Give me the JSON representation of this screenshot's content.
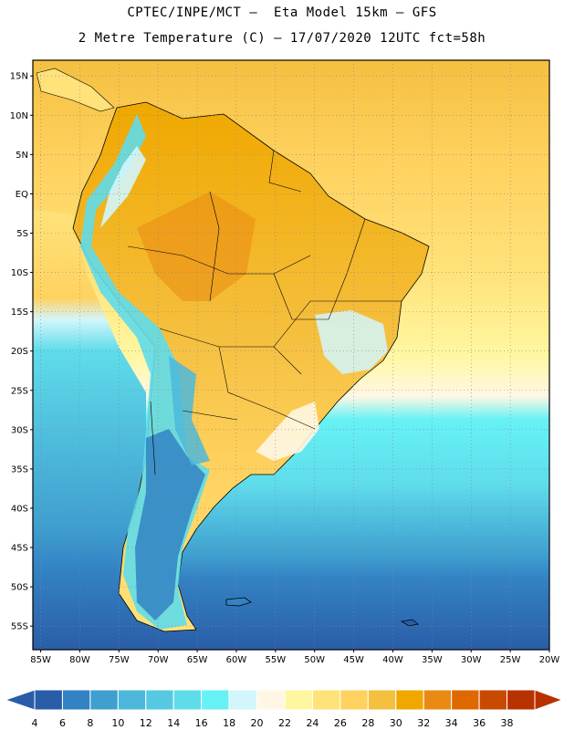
{
  "header": {
    "line1": "CPTEC/INPE/MCT –  Eta Model 15km – GFS",
    "line2": "2 Metre Temperature (C) – 17/07/2020 12UTC fct=58h"
  },
  "map": {
    "lat_range": [
      -58,
      17
    ],
    "lon_range": [
      -86,
      -20
    ],
    "lat_labels": [
      {
        "value": 15,
        "text": "15N"
      },
      {
        "value": 10,
        "text": "10N"
      },
      {
        "value": 5,
        "text": "5N"
      },
      {
        "value": 0,
        "text": "EQ"
      },
      {
        "value": -5,
        "text": "5S"
      },
      {
        "value": -10,
        "text": "10S"
      },
      {
        "value": -15,
        "text": "15S"
      },
      {
        "value": -20,
        "text": "20S"
      },
      {
        "value": -25,
        "text": "25S"
      },
      {
        "value": -30,
        "text": "30S"
      },
      {
        "value": -35,
        "text": "35S"
      },
      {
        "value": -40,
        "text": "40S"
      },
      {
        "value": -45,
        "text": "45S"
      },
      {
        "value": -50,
        "text": "50S"
      },
      {
        "value": -55,
        "text": "55S"
      }
    ],
    "lon_labels": [
      {
        "value": -85,
        "text": "85W"
      },
      {
        "value": -80,
        "text": "80W"
      },
      {
        "value": -75,
        "text": "75W"
      },
      {
        "value": -70,
        "text": "70W"
      },
      {
        "value": -65,
        "text": "65W"
      },
      {
        "value": -60,
        "text": "60W"
      },
      {
        "value": -55,
        "text": "55W"
      },
      {
        "value": -50,
        "text": "50W"
      },
      {
        "value": -45,
        "text": "45W"
      },
      {
        "value": -40,
        "text": "40W"
      },
      {
        "value": -35,
        "text": "35W"
      },
      {
        "value": -30,
        "text": "30W"
      },
      {
        "value": -25,
        "text": "25W"
      },
      {
        "value": -20,
        "text": "20W"
      }
    ]
  },
  "colorbar": {
    "levels": [
      "4",
      "6",
      "8",
      "10",
      "12",
      "14",
      "16",
      "18",
      "20",
      "22",
      "24",
      "26",
      "28",
      "30",
      "32",
      "34",
      "36",
      "38"
    ],
    "colors": [
      "#2a5da8",
      "#3382c4",
      "#3f9fcf",
      "#4cb8db",
      "#56c9e2",
      "#5fdcea",
      "#66f2f5",
      "#d2f6fc",
      "#fff7e4",
      "#fff7a0",
      "#ffe27a",
      "#ffd260",
      "#f5c040",
      "#f0a800",
      "#ea8a14",
      "#e06800",
      "#c84a00",
      "#b83200"
    ]
  }
}
